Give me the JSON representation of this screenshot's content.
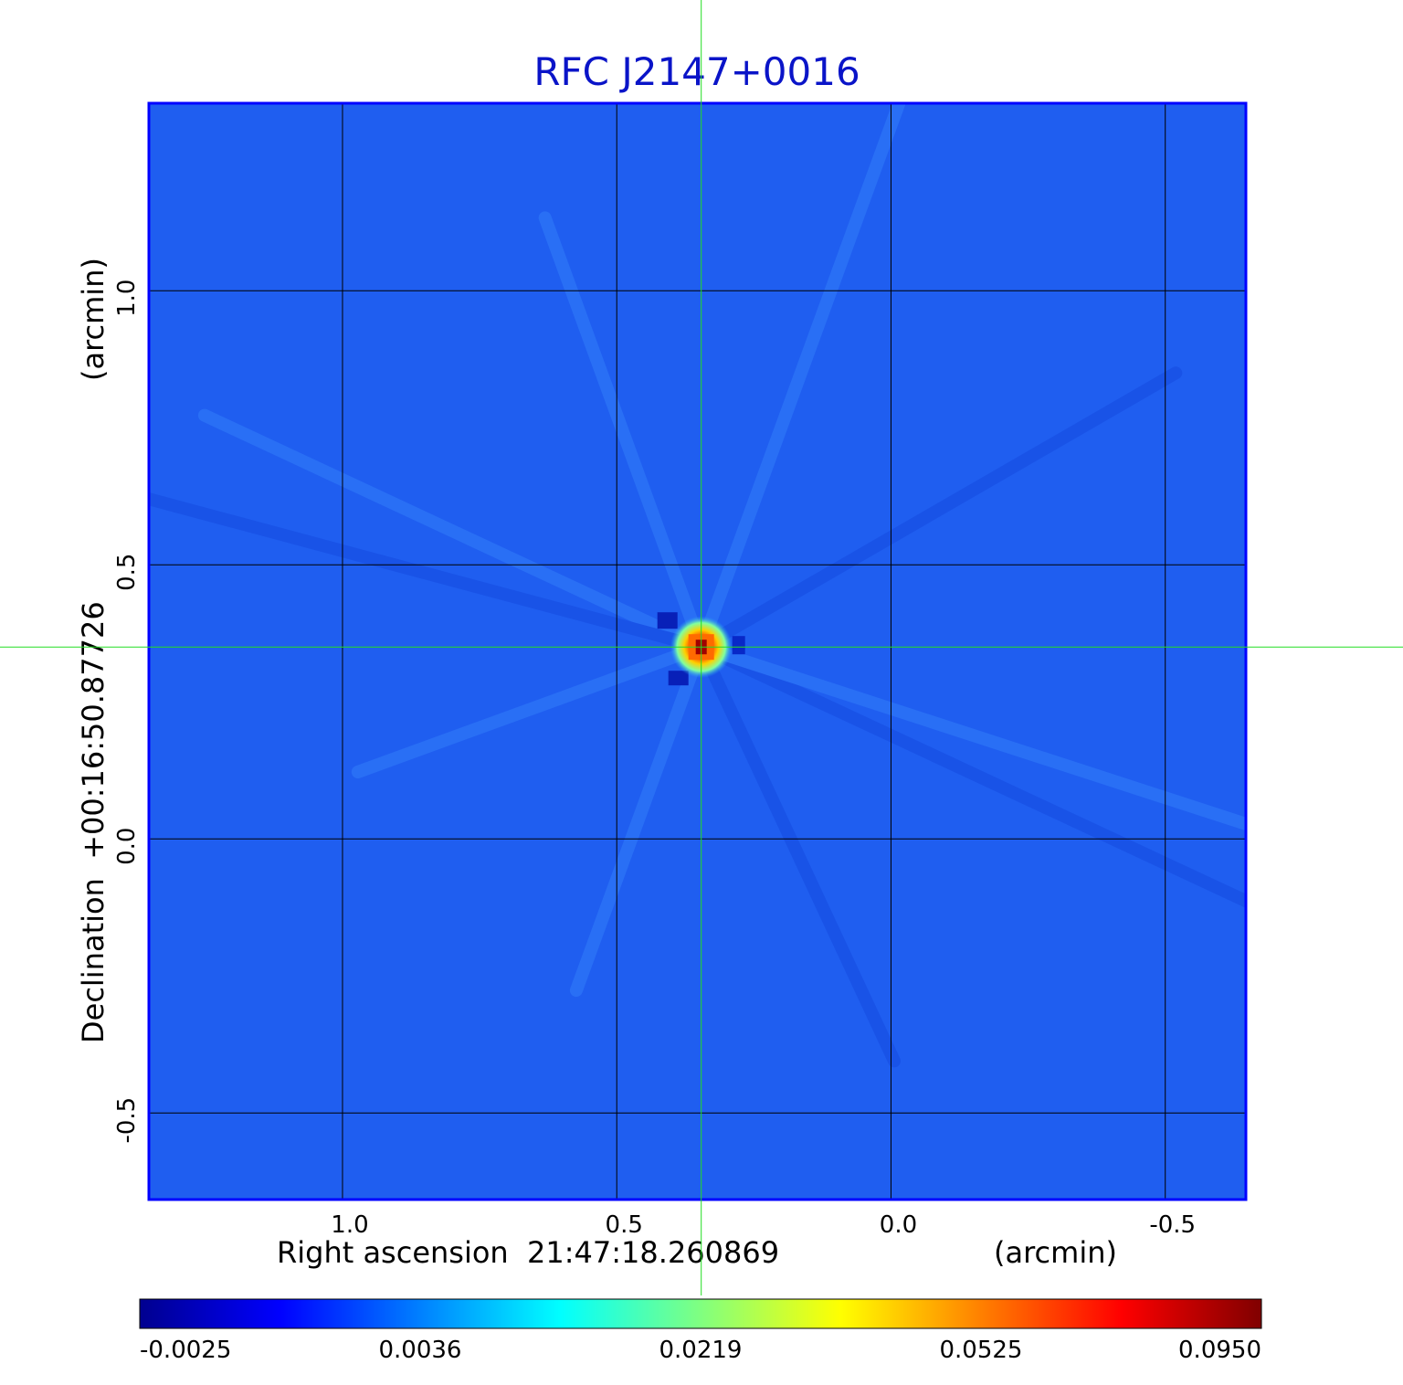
{
  "chart_data": {
    "type": "heatmap",
    "title": "RFC J2147+0016",
    "xlabel": "Right ascension  21:47:18.260869",
    "xunit": "(arcmin)",
    "ylabel": "Declination  +00:16:50.87726",
    "yunit": "(arcmin)",
    "x_ticks": [
      "1.0",
      "0.5",
      "0.0",
      "-0.5"
    ],
    "x_tick_values": [
      1.0,
      0.5,
      0.0,
      -0.5
    ],
    "y_ticks": [
      "1.0",
      "0.5",
      "0.0",
      "-0.5"
    ],
    "y_tick_values": [
      1.0,
      0.5,
      0.0,
      -0.5
    ],
    "xlim": [
      1.353,
      -0.647
    ],
    "ylim": [
      -0.658,
      1.342
    ],
    "grid": true,
    "crosshair": {
      "x": 0.346,
      "y": 0.35,
      "color": "#22dd22"
    },
    "source": {
      "x": 0.346,
      "y": 0.35,
      "peak": 0.095
    },
    "colorbar": {
      "location": "bottom",
      "ticks": [
        "-0.0025",
        "0.0036",
        "0.0219",
        "0.0525",
        "0.0950"
      ],
      "min": -0.0025,
      "max": 0.095,
      "colormap": "jet",
      "stops": [
        "#00008f",
        "#0000ff",
        "#0080ff",
        "#00ffff",
        "#80ff80",
        "#ffff00",
        "#ff8000",
        "#ff0000",
        "#800000"
      ]
    },
    "colors": {
      "title": "#0a14c8",
      "background_map": "#1f5ef0",
      "frame": "#0000ff"
    }
  }
}
